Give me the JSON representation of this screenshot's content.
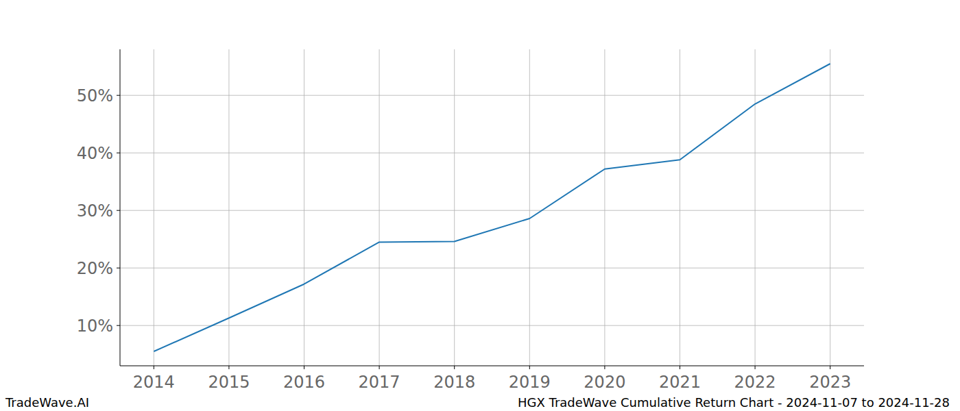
{
  "chart_data": {
    "type": "line",
    "annotations": [
      "TradeWave.AI",
      "HGX TradeWave Cumulative Return Chart - 2024-11-07 to 2024-11-28"
    ],
    "x": [
      2014,
      2015,
      2016,
      2017,
      2018,
      2019,
      2020,
      2021,
      2022,
      2023
    ],
    "series": [
      {
        "name": "HGX",
        "color": "#1f77b4",
        "values": [
          5.5,
          11.3,
          17.2,
          24.5,
          24.6,
          28.6,
          37.2,
          38.8,
          48.5,
          55.5
        ]
      }
    ],
    "xlim": [
      2013.55,
      2023.45
    ],
    "xticks": [
      2014,
      2015,
      2016,
      2017,
      2018,
      2019,
      2020,
      2021,
      2022,
      2023
    ],
    "ylim": [
      3,
      58
    ],
    "yticks": [
      {
        "value": 10,
        "label": "10%"
      },
      {
        "value": 20,
        "label": "20%"
      },
      {
        "value": 30,
        "label": "30%"
      },
      {
        "value": 40,
        "label": "40%"
      },
      {
        "value": 50,
        "label": "50%"
      }
    ],
    "grid": true
  }
}
